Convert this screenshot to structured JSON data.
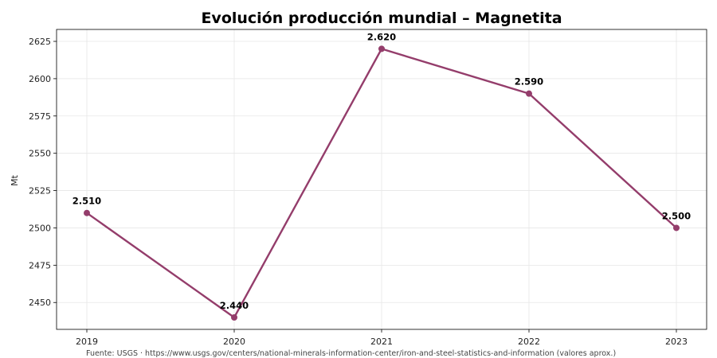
{
  "chart_data": {
    "type": "line",
    "title": "Evolución producción mundial – Magnetita",
    "xlabel": "",
    "ylabel": "Mt",
    "categories": [
      "2019",
      "2020",
      "2021",
      "2022",
      "2023"
    ],
    "series": [
      {
        "values": [
          2510,
          2440,
          2620,
          2590,
          2500
        ],
        "labels": [
          "2.510",
          "2.440",
          "2.620",
          "2.590",
          "2.500"
        ],
        "color": "#943d6b"
      }
    ],
    "yticks": [
      "2450",
      "2475",
      "2500",
      "2525",
      "2550",
      "2575",
      "2600",
      "2625"
    ],
    "ylim": [
      2432,
      2633
    ],
    "grid": true,
    "legend": "none",
    "source": "Fuente: USGS · https://www.usgs.gov/centers/national-minerals-information-center/iron-and-steel-statistics-and-information (valores aprox.)"
  }
}
